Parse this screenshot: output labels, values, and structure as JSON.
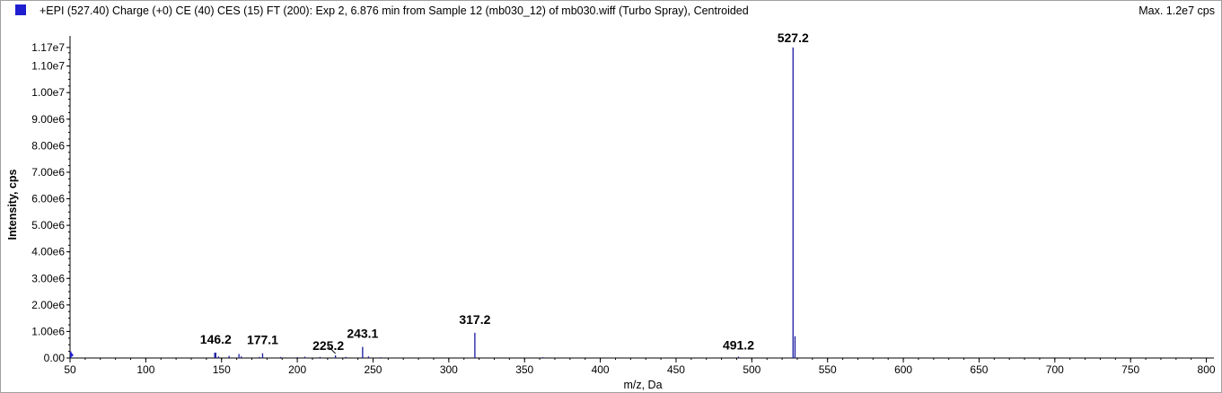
{
  "header": {
    "title": "+EPI (527.40) Charge (+0) CE (40) CES (15) FT (200): Exp 2, 6.876 min from Sample 12 (mb030_12) of mb030.wiff (Turbo Spray), Centroided",
    "max_label": "Max. 1.2e7 cps",
    "legend_color": "#1f1fd0"
  },
  "chart_data": {
    "type": "bar",
    "title": "+EPI (527.40) Charge (+0) CE (40) CES (15) FT (200): Exp 2, 6.876 min from Sample 12 (mb030_12) of mb030.wiff (Turbo Spray), Centroided",
    "xlabel": "m/z, Da",
    "ylabel": "Intensity, cps",
    "xlim": [
      50,
      805
    ],
    "ylim": [
      0,
      11900000
    ],
    "line_color": "#1a1aa0",
    "x_ticks": [
      50,
      100,
      150,
      200,
      250,
      300,
      350,
      400,
      450,
      500,
      550,
      600,
      650,
      700,
      750,
      800
    ],
    "y_ticks": [
      {
        "value": 0,
        "label": "0.00"
      },
      {
        "value": 1000000,
        "label": "1.00e6"
      },
      {
        "value": 2000000,
        "label": "2.00e6"
      },
      {
        "value": 3000000,
        "label": "3.00e6"
      },
      {
        "value": 4000000,
        "label": "4.00e6"
      },
      {
        "value": 5000000,
        "label": "5.00e6"
      },
      {
        "value": 6000000,
        "label": "6.00e6"
      },
      {
        "value": 7000000,
        "label": "7.00e6"
      },
      {
        "value": 8000000,
        "label": "8.00e6"
      },
      {
        "value": 9000000,
        "label": "9.00e6"
      },
      {
        "value": 10000000,
        "label": "1.00e7"
      },
      {
        "value": 11000000,
        "label": "1.10e7"
      },
      {
        "value": 11700000,
        "label": "1.17e7"
      }
    ],
    "peaks": [
      {
        "mz": 50.5,
        "intensity": 250000
      },
      {
        "mz": 145.5,
        "intensity": 200000
      },
      {
        "mz": 146.2,
        "intensity": 200000
      },
      {
        "mz": 148.0,
        "intensity": 60000
      },
      {
        "mz": 155.0,
        "intensity": 80000
      },
      {
        "mz": 161.5,
        "intensity": 150000
      },
      {
        "mz": 163.0,
        "intensity": 60000
      },
      {
        "mz": 175.0,
        "intensity": 40000
      },
      {
        "mz": 177.1,
        "intensity": 180000
      },
      {
        "mz": 189.0,
        "intensity": 40000
      },
      {
        "mz": 200.0,
        "intensity": 30000
      },
      {
        "mz": 205.0,
        "intensity": 50000
      },
      {
        "mz": 215.0,
        "intensity": 40000
      },
      {
        "mz": 225.2,
        "intensity": 100000
      },
      {
        "mz": 232.0,
        "intensity": 40000
      },
      {
        "mz": 243.1,
        "intensity": 420000
      },
      {
        "mz": 247.0,
        "intensity": 60000
      },
      {
        "mz": 255.0,
        "intensity": 30000
      },
      {
        "mz": 317.2,
        "intensity": 950000
      },
      {
        "mz": 362.0,
        "intensity": 30000
      },
      {
        "mz": 491.2,
        "intensity": 50000
      },
      {
        "mz": 527.2,
        "intensity": 11700000
      },
      {
        "mz": 528.5,
        "intensity": 820000
      }
    ],
    "peak_labels": [
      {
        "mz": 146.2,
        "intensity": 200000,
        "label": "146.2"
      },
      {
        "mz": 177.1,
        "intensity": 180000,
        "label": "177.1"
      },
      {
        "mz": 225.2,
        "intensity": 100000,
        "label": "225.2"
      },
      {
        "mz": 243.1,
        "intensity": 420000,
        "label": "243.1"
      },
      {
        "mz": 317.2,
        "intensity": 950000,
        "label": "317.2"
      },
      {
        "mz": 491.2,
        "intensity": 50000,
        "label": "491.2"
      },
      {
        "mz": 527.2,
        "intensity": 11700000,
        "label": "527.2"
      }
    ]
  }
}
